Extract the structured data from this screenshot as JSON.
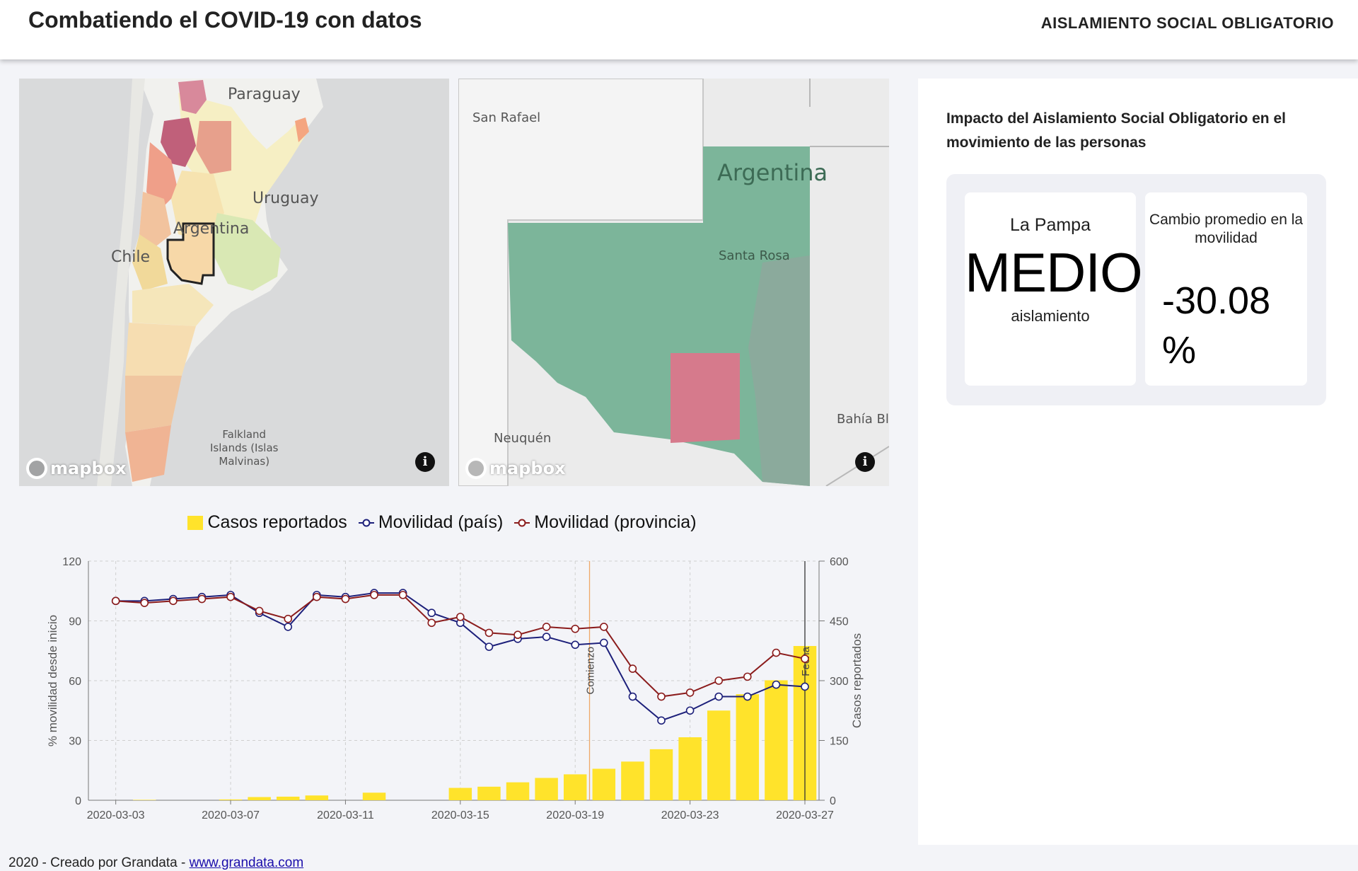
{
  "header": {
    "title": "Combatiendo el COVID-19 con datos",
    "nav_item": "AISLAMIENTO SOCIAL OBLIGATORIO"
  },
  "map_country": {
    "labels": {
      "paraguay": "Paraguay",
      "uruguay": "Uruguay",
      "argentina": "Argentina",
      "chile": "Chile",
      "falkland": "Falkland\nIslands (Islas\nMalvinas)"
    },
    "logo": "mapbox",
    "info_icon": "info-icon"
  },
  "map_province": {
    "labels": {
      "san_rafael": "San Rafael",
      "argentina": "Argentina",
      "santa_rosa": "Santa Rosa",
      "neuquen": "Neuquén",
      "bahia": "Bahía Bl"
    },
    "logo": "mapbox",
    "info_icon": "info-icon"
  },
  "panel": {
    "title": "Impacto del Aislamiento Social Obligatorio en el movimiento de las personas",
    "level_card": {
      "region": "La Pampa",
      "level": "MEDIO",
      "sub": "aislamiento"
    },
    "change_card": {
      "label": "Cambio promedio en la movilidad",
      "value": "-30.08",
      "unit": "%"
    }
  },
  "legend": {
    "cases": "Casos reportados",
    "mob_country": "Movilidad (país)",
    "mob_province": "Movilidad (provincia)"
  },
  "footer": {
    "text": "2020 - Creado por Grandata - ",
    "link": "www.grandata.com"
  },
  "colors": {
    "bars": "#ffe32b",
    "country": "#1c1f7a",
    "province": "#8b1c1c",
    "marker_start": "#f0a868",
    "marker_end": "#333333"
  },
  "chart_data": {
    "type": "bar+line",
    "dates": [
      "2020-03-03",
      "2020-03-04",
      "2020-03-05",
      "2020-03-06",
      "2020-03-07",
      "2020-03-08",
      "2020-03-09",
      "2020-03-10",
      "2020-03-11",
      "2020-03-12",
      "2020-03-13",
      "2020-03-14",
      "2020-03-15",
      "2020-03-16",
      "2020-03-17",
      "2020-03-18",
      "2020-03-19",
      "2020-03-20",
      "2020-03-21",
      "2020-03-22",
      "2020-03-23",
      "2020-03-24",
      "2020-03-25",
      "2020-03-26",
      "2020-03-27"
    ],
    "xticks": [
      "2020-03-03",
      "2020-03-07",
      "2020-03-11",
      "2020-03-15",
      "2020-03-19",
      "2020-03-23",
      "2020-03-27"
    ],
    "ylabel_left": "% movilidad desde inicio",
    "ylabel_right": "Casos reportados",
    "ylim_left": [
      0,
      120
    ],
    "yticks_left": [
      0,
      30,
      60,
      90,
      120
    ],
    "ylim_right": [
      0,
      600
    ],
    "yticks_right": [
      0,
      150,
      300,
      450,
      600
    ],
    "series": [
      {
        "name": "Casos reportados",
        "kind": "bar",
        "values": [
          0,
          1,
          0,
          0,
          2,
          8,
          9,
          12,
          0,
          19,
          0,
          0,
          31,
          34,
          45,
          56,
          65,
          79,
          97,
          128,
          158,
          225,
          266,
          301,
          387
        ]
      },
      {
        "name": "Movilidad (país)",
        "kind": "line",
        "values": [
          100,
          100,
          101,
          102,
          103,
          94,
          87,
          103,
          102,
          104,
          104,
          94,
          89,
          77,
          81,
          82,
          78,
          79,
          52,
          40,
          45,
          52,
          52,
          58,
          57
        ]
      },
      {
        "name": "Movilidad (provincia)",
        "kind": "line",
        "values": [
          100,
          99,
          100,
          101,
          102,
          95,
          91,
          102,
          101,
          103,
          103,
          89,
          92,
          84,
          83,
          87,
          86,
          87,
          66,
          52,
          54,
          60,
          62,
          74,
          71
        ]
      }
    ],
    "bars_plotted_on": [
      "2020-03-03",
      "2020-03-04",
      "2020-03-05",
      "2020-03-06",
      "2020-03-07",
      "2020-03-08",
      "2020-03-09",
      "2020-03-10",
      "2020-03-11",
      "2020-03-12",
      "2020-03-13",
      "2020-03-14",
      "2020-03-15",
      "2020-03-16",
      "2020-03-17",
      "2020-03-18",
      "2020-03-19",
      "2020-03-20",
      "2020-03-21",
      "2020-03-22",
      "2020-03-23",
      "2020-03-24",
      "2020-03-25",
      "2020-03-26",
      "2020-03-27"
    ],
    "annotations": [
      {
        "label": "Comienzo",
        "date": "2020-03-20"
      },
      {
        "label": "Fecha",
        "date": "2020-03-27"
      }
    ],
    "legend_position": "top",
    "grid": true
  }
}
